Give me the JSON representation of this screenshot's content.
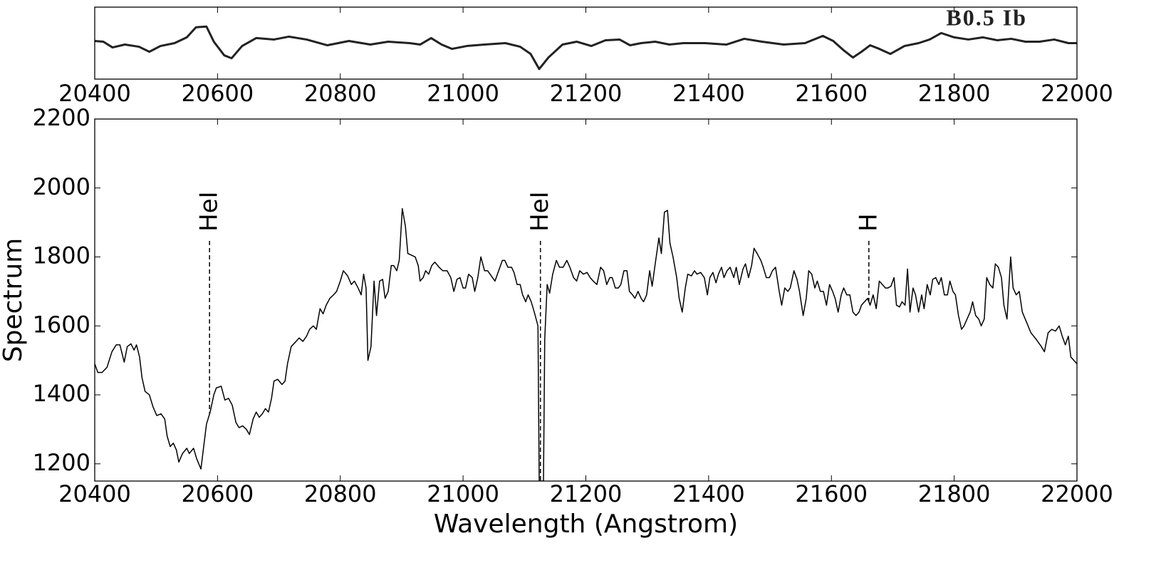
{
  "chart_data": [
    {
      "type": "line",
      "title": "B0.5 Ib",
      "x": [
        20400,
        20414,
        20429,
        20449,
        20472,
        20489,
        20507,
        20530,
        20550,
        20565,
        20582,
        20594,
        20611,
        20623,
        20640,
        20663,
        20692,
        20716,
        20745,
        20779,
        20814,
        20849,
        20878,
        20913,
        20930,
        20948,
        20965,
        20982,
        21006,
        21035,
        21069,
        21093,
        21110,
        21124,
        21139,
        21162,
        21185,
        21209,
        21232,
        21255,
        21272,
        21290,
        21313,
        21336,
        21359,
        21394,
        21429,
        21458,
        21487,
        21522,
        21557,
        21586,
        21603,
        21620,
        21635,
        21649,
        21663,
        21678,
        21696,
        21719,
        21742,
        21760,
        21779,
        21800,
        21823,
        21847,
        21870,
        21893,
        21916,
        21939,
        21963,
        21986,
        22000
      ],
      "series": [
        {
          "color": "#222222",
          "values": [
            0.53,
            0.52,
            0.44,
            0.48,
            0.45,
            0.38,
            0.46,
            0.5,
            0.58,
            0.72,
            0.73,
            0.52,
            0.33,
            0.29,
            0.46,
            0.57,
            0.55,
            0.59,
            0.55,
            0.47,
            0.53,
            0.48,
            0.52,
            0.5,
            0.48,
            0.57,
            0.48,
            0.42,
            0.46,
            0.48,
            0.5,
            0.45,
            0.35,
            0.14,
            0.3,
            0.48,
            0.52,
            0.46,
            0.54,
            0.55,
            0.47,
            0.5,
            0.52,
            0.48,
            0.5,
            0.5,
            0.48,
            0.56,
            0.52,
            0.48,
            0.5,
            0.6,
            0.53,
            0.4,
            0.3,
            0.38,
            0.47,
            0.42,
            0.35,
            0.46,
            0.5,
            0.55,
            0.64,
            0.58,
            0.55,
            0.58,
            0.54,
            0.56,
            0.52,
            0.52,
            0.55,
            0.5,
            0.5
          ]
        }
      ],
      "xlim": [
        20400,
        22000
      ],
      "ylim": [
        0,
        1
      ],
      "xticks": [
        20400,
        20600,
        20800,
        21000,
        21200,
        21400,
        21600,
        21800,
        22000
      ]
    },
    {
      "type": "line",
      "xlabel": "Wavelength (Angstrom)",
      "ylabel": "Spectrum",
      "x": [
        20400,
        20405,
        20412,
        20420,
        20428,
        20435,
        20441,
        20448,
        20453,
        20459,
        20464,
        20468,
        20473,
        20477,
        20482,
        20489,
        20495,
        20501,
        20508,
        20514,
        20518,
        20523,
        20528,
        20533,
        20537,
        20543,
        20550,
        20554,
        20561,
        20566,
        20573,
        20582,
        20588,
        20594,
        20598,
        20606,
        20612,
        20618,
        20624,
        20630,
        20635,
        20641,
        20647,
        20652,
        20658,
        20663,
        20668,
        20673,
        20678,
        20683,
        20688,
        20692,
        20698,
        20705,
        20710,
        20714,
        20720,
        20728,
        20733,
        20739,
        20745,
        20750,
        20756,
        20761,
        20767,
        20772,
        20777,
        20783,
        20789,
        20794,
        20800,
        20805,
        20812,
        20818,
        20823,
        20829,
        20834,
        20838,
        20842,
        20845,
        20850,
        20855,
        20859,
        20864,
        20869,
        20873,
        20878,
        20883,
        20887,
        20892,
        20896,
        20901,
        20906,
        20910,
        20916,
        20922,
        20927,
        20930,
        20935,
        20939,
        20944,
        20949,
        20954,
        20961,
        20967,
        20974,
        20980,
        20985,
        20990,
        20995,
        21000,
        21004,
        21009,
        21015,
        21019,
        21024,
        21029,
        21035,
        21040,
        21046,
        21052,
        21058,
        21064,
        21068,
        21073,
        21079,
        21083,
        21088,
        21093,
        21097,
        21102,
        21106,
        21111,
        21116,
        21122,
        21124,
        21131,
        21133,
        21137,
        21141,
        21146,
        21152,
        21157,
        21163,
        21169,
        21174,
        21180,
        21185,
        21190,
        21196,
        21202,
        21207,
        21212,
        21218,
        21224,
        21229,
        21234,
        21239,
        21243,
        21248,
        21253,
        21257,
        21262,
        21267,
        21271,
        21276,
        21280,
        21285,
        21290,
        21294,
        21299,
        21304,
        21308,
        21313,
        21319,
        21323,
        21328,
        21333,
        21337,
        21342,
        21348,
        21352,
        21357,
        21362,
        21366,
        21372,
        21377,
        21381,
        21387,
        21393,
        21398,
        21402,
        21407,
        21412,
        21416,
        21421,
        21425,
        21430,
        21435,
        21441,
        21445,
        21450,
        21456,
        21460,
        21465,
        21470,
        21474,
        21479,
        21485,
        21489,
        21494,
        21499,
        21504,
        21509,
        21515,
        21519,
        21524,
        21529,
        21533,
        21539,
        21544,
        21548,
        21554,
        21559,
        21563,
        21568,
        21573,
        21577,
        21582,
        21587,
        21592,
        21597,
        21602,
        21606,
        21611,
        21616,
        21620,
        21625,
        21630,
        21635,
        21640,
        21645,
        21649,
        21654,
        21659,
        21663,
        21668,
        21673,
        21678,
        21683,
        21688,
        21692,
        21697,
        21702,
        21706,
        21711,
        21715,
        21720,
        21724,
        21728,
        21733,
        21737,
        21742,
        21747,
        21751,
        21756,
        21761,
        21765,
        21770,
        21775,
        21779,
        21784,
        21789,
        21793,
        21798,
        21802,
        21807,
        21812,
        21816,
        21821,
        21826,
        21830,
        21835,
        21840,
        21844,
        21849,
        21853,
        21858,
        21863,
        21867,
        21872,
        21877,
        21881,
        21886,
        21892,
        21896,
        21901,
        21906,
        21911,
        21918,
        21925,
        21934,
        21942,
        21947,
        21953,
        21959,
        21965,
        21971,
        21976,
        21981,
        21986,
        21990,
        22000
      ],
      "series": [
        {
          "color": "#000000",
          "values": [
            1490,
            1465,
            1465,
            1480,
            1525,
            1545,
            1545,
            1495,
            1540,
            1548,
            1530,
            1545,
            1510,
            1450,
            1410,
            1400,
            1365,
            1340,
            1345,
            1330,
            1280,
            1250,
            1260,
            1240,
            1205,
            1230,
            1245,
            1230,
            1245,
            1215,
            1185,
            1315,
            1350,
            1400,
            1420,
            1425,
            1385,
            1390,
            1370,
            1320,
            1305,
            1310,
            1300,
            1285,
            1330,
            1350,
            1335,
            1345,
            1360,
            1350,
            1390,
            1440,
            1445,
            1430,
            1440,
            1490,
            1540,
            1555,
            1565,
            1555,
            1570,
            1590,
            1600,
            1590,
            1650,
            1635,
            1660,
            1680,
            1690,
            1700,
            1730,
            1760,
            1745,
            1720,
            1730,
            1710,
            1690,
            1750,
            1710,
            1500,
            1540,
            1730,
            1630,
            1730,
            1735,
            1680,
            1700,
            1775,
            1775,
            1760,
            1790,
            1940,
            1890,
            1810,
            1805,
            1800,
            1775,
            1730,
            1740,
            1760,
            1750,
            1775,
            1785,
            1770,
            1760,
            1760,
            1740,
            1700,
            1735,
            1740,
            1710,
            1710,
            1750,
            1740,
            1700,
            1740,
            1800,
            1760,
            1760,
            1745,
            1730,
            1760,
            1790,
            1790,
            1770,
            1770,
            1755,
            1720,
            1720,
            1690,
            1670,
            1690,
            1670,
            1640,
            1600,
            1150,
            1150,
            1560,
            1720,
            1695,
            1750,
            1790,
            1770,
            1770,
            1790,
            1770,
            1740,
            1730,
            1760,
            1750,
            1755,
            1740,
            1730,
            1720,
            1770,
            1760,
            1720,
            1740,
            1740,
            1710,
            1710,
            1720,
            1760,
            1760,
            1700,
            1690,
            1680,
            1700,
            1680,
            1670,
            1690,
            1760,
            1715,
            1780,
            1855,
            1810,
            1930,
            1935,
            1840,
            1800,
            1740,
            1680,
            1640,
            1710,
            1750,
            1745,
            1760,
            1750,
            1755,
            1740,
            1690,
            1740,
            1755,
            1725,
            1750,
            1770,
            1740,
            1760,
            1770,
            1740,
            1770,
            1720,
            1765,
            1780,
            1740,
            1775,
            1825,
            1810,
            1790,
            1770,
            1740,
            1740,
            1760,
            1770,
            1700,
            1660,
            1710,
            1700,
            1710,
            1760,
            1735,
            1700,
            1630,
            1680,
            1760,
            1750,
            1710,
            1730,
            1700,
            1700,
            1660,
            1720,
            1700,
            1680,
            1640,
            1690,
            1710,
            1690,
            1690,
            1640,
            1630,
            1640,
            1660,
            1670,
            1680,
            1660,
            1690,
            1650,
            1730,
            1720,
            1710,
            1710,
            1715,
            1740,
            1660,
            1655,
            1670,
            1660,
            1765,
            1640,
            1710,
            1690,
            1640,
            1690,
            1650,
            1720,
            1690,
            1735,
            1740,
            1720,
            1740,
            1690,
            1690,
            1730,
            1700,
            1690,
            1630,
            1590,
            1600,
            1620,
            1640,
            1670,
            1630,
            1620,
            1600,
            1620,
            1740,
            1720,
            1710,
            1780,
            1770,
            1740,
            1660,
            1620,
            1800,
            1710,
            1690,
            1700,
            1640,
            1610,
            1580,
            1560,
            1540,
            1525,
            1580,
            1590,
            1585,
            1600,
            1570,
            1545,
            1570,
            1510,
            1490
          ]
        }
      ],
      "xlim": [
        20400,
        22000
      ],
      "ylim": [
        1150,
        2200
      ],
      "xticks": [
        20400,
        20600,
        20800,
        21000,
        21200,
        21400,
        21600,
        21800,
        22000
      ],
      "yticks": [
        1200,
        1400,
        1600,
        1800,
        2000,
        2200
      ],
      "annotations": [
        {
          "text": "HeI",
          "x": 20587
        },
        {
          "text": "HeI",
          "x": 21126
        },
        {
          "text": "H",
          "x": 21661
        }
      ]
    }
  ]
}
